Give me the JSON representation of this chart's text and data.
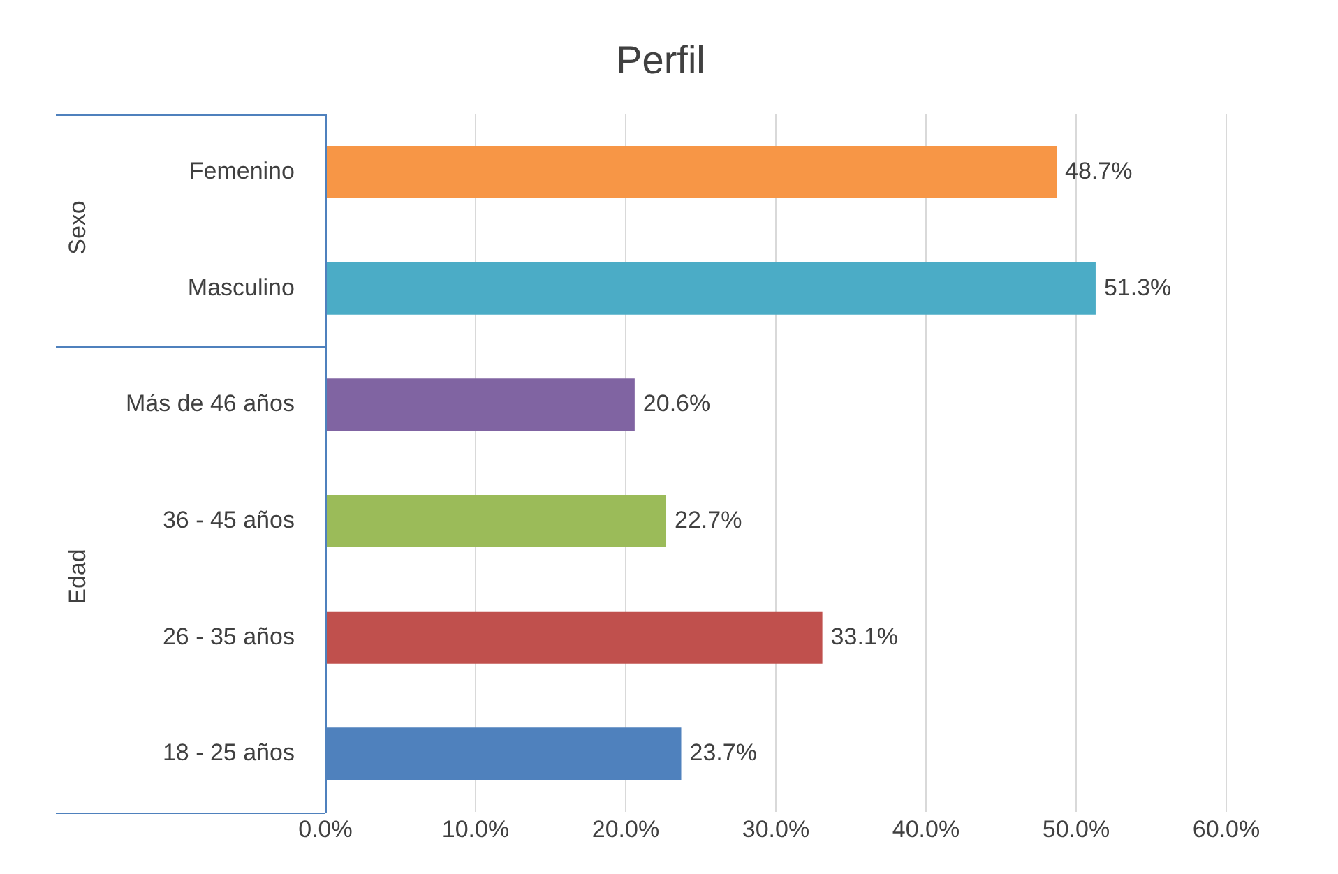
{
  "chart_data": {
    "type": "bar",
    "orientation": "horizontal",
    "title": "Perfil",
    "categories": [
      "Femenino",
      "Masculino",
      "Más de 46 años",
      "36 - 45 años",
      "26 - 35 años",
      "18 - 25 años"
    ],
    "values": [
      48.7,
      51.3,
      20.6,
      22.7,
      33.1,
      23.7
    ],
    "colors": [
      "#f79646",
      "#4bacc6",
      "#8064a2",
      "#9bbb59",
      "#c0504d",
      "#4f81bd"
    ],
    "value_labels": [
      "48.7%",
      "51.3%",
      "20.6%",
      "22.7%",
      "33.1%",
      "23.7%"
    ],
    "xlim": [
      0,
      60
    ],
    "xticks": [
      {
        "value": 0,
        "label": "0.0%"
      },
      {
        "value": 10,
        "label": "10.0%"
      },
      {
        "value": 20,
        "label": "20.0%"
      },
      {
        "value": 30,
        "label": "30.0%"
      },
      {
        "value": 40,
        "label": "40.0%"
      },
      {
        "value": 50,
        "label": "50.0%"
      },
      {
        "value": 60,
        "label": "60.0%"
      }
    ],
    "grid": "x",
    "legend": false,
    "annotations": [
      "Sexo",
      "Edad"
    ]
  }
}
